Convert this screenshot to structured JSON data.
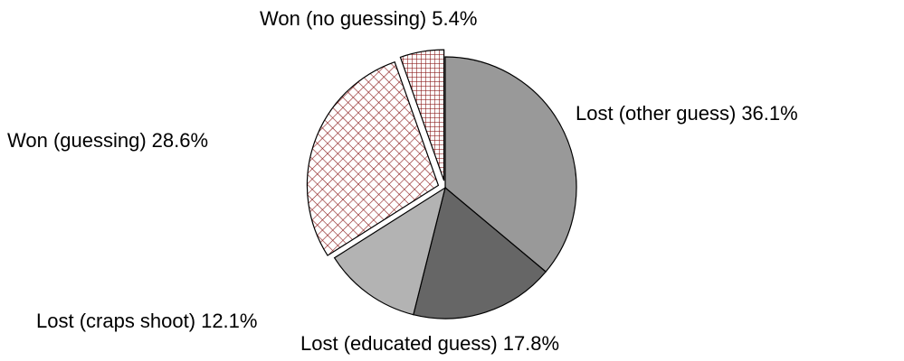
{
  "chart_data": {
    "type": "pie",
    "categories": [
      "Lost (other guess)",
      "Lost (educated guess)",
      "Lost (craps shoot)",
      "Won (guessing)",
      "Won (no guessing)"
    ],
    "values": [
      36.1,
      17.8,
      12.1,
      28.6,
      5.4
    ],
    "value_labels": [
      "36.1%",
      "17.8%",
      "12.1%",
      "28.6%",
      "5.4%"
    ],
    "colors": [
      "#999999",
      "#666666",
      "#b3b3b3",
      "#8b1a1a",
      "#8b1a1a"
    ],
    "hatch": [
      null,
      null,
      null,
      "diagonal",
      "grid"
    ],
    "exploded": [
      false,
      false,
      false,
      true,
      true
    ]
  }
}
